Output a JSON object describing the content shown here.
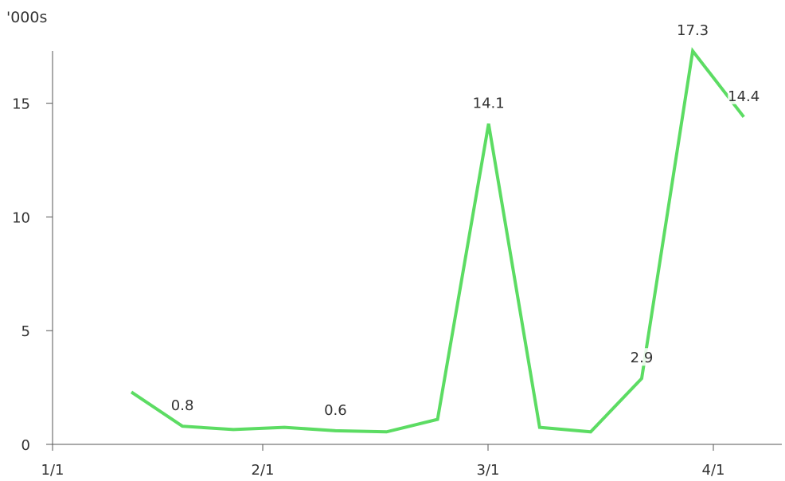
{
  "chart_data": {
    "type": "line",
    "y_unit_label": "'000s",
    "x_tick_labels": [
      "1/1",
      "2/1",
      "3/1",
      "4/1"
    ],
    "y_ticks": [
      0,
      5,
      10,
      15
    ],
    "ylim": [
      0,
      17.3
    ],
    "grid": false,
    "series": [
      {
        "color": "#5cdc63",
        "values": [
          2.3,
          0.8,
          0.65,
          0.75,
          0.6,
          0.55,
          1.1,
          14.1,
          0.75,
          0.55,
          2.9,
          17.3,
          14.4
        ],
        "labels": [
          null,
          "0.8",
          null,
          null,
          "0.6",
          null,
          null,
          "14.1",
          null,
          null,
          "2.9",
          "17.3",
          "14.4"
        ]
      }
    ]
  }
}
